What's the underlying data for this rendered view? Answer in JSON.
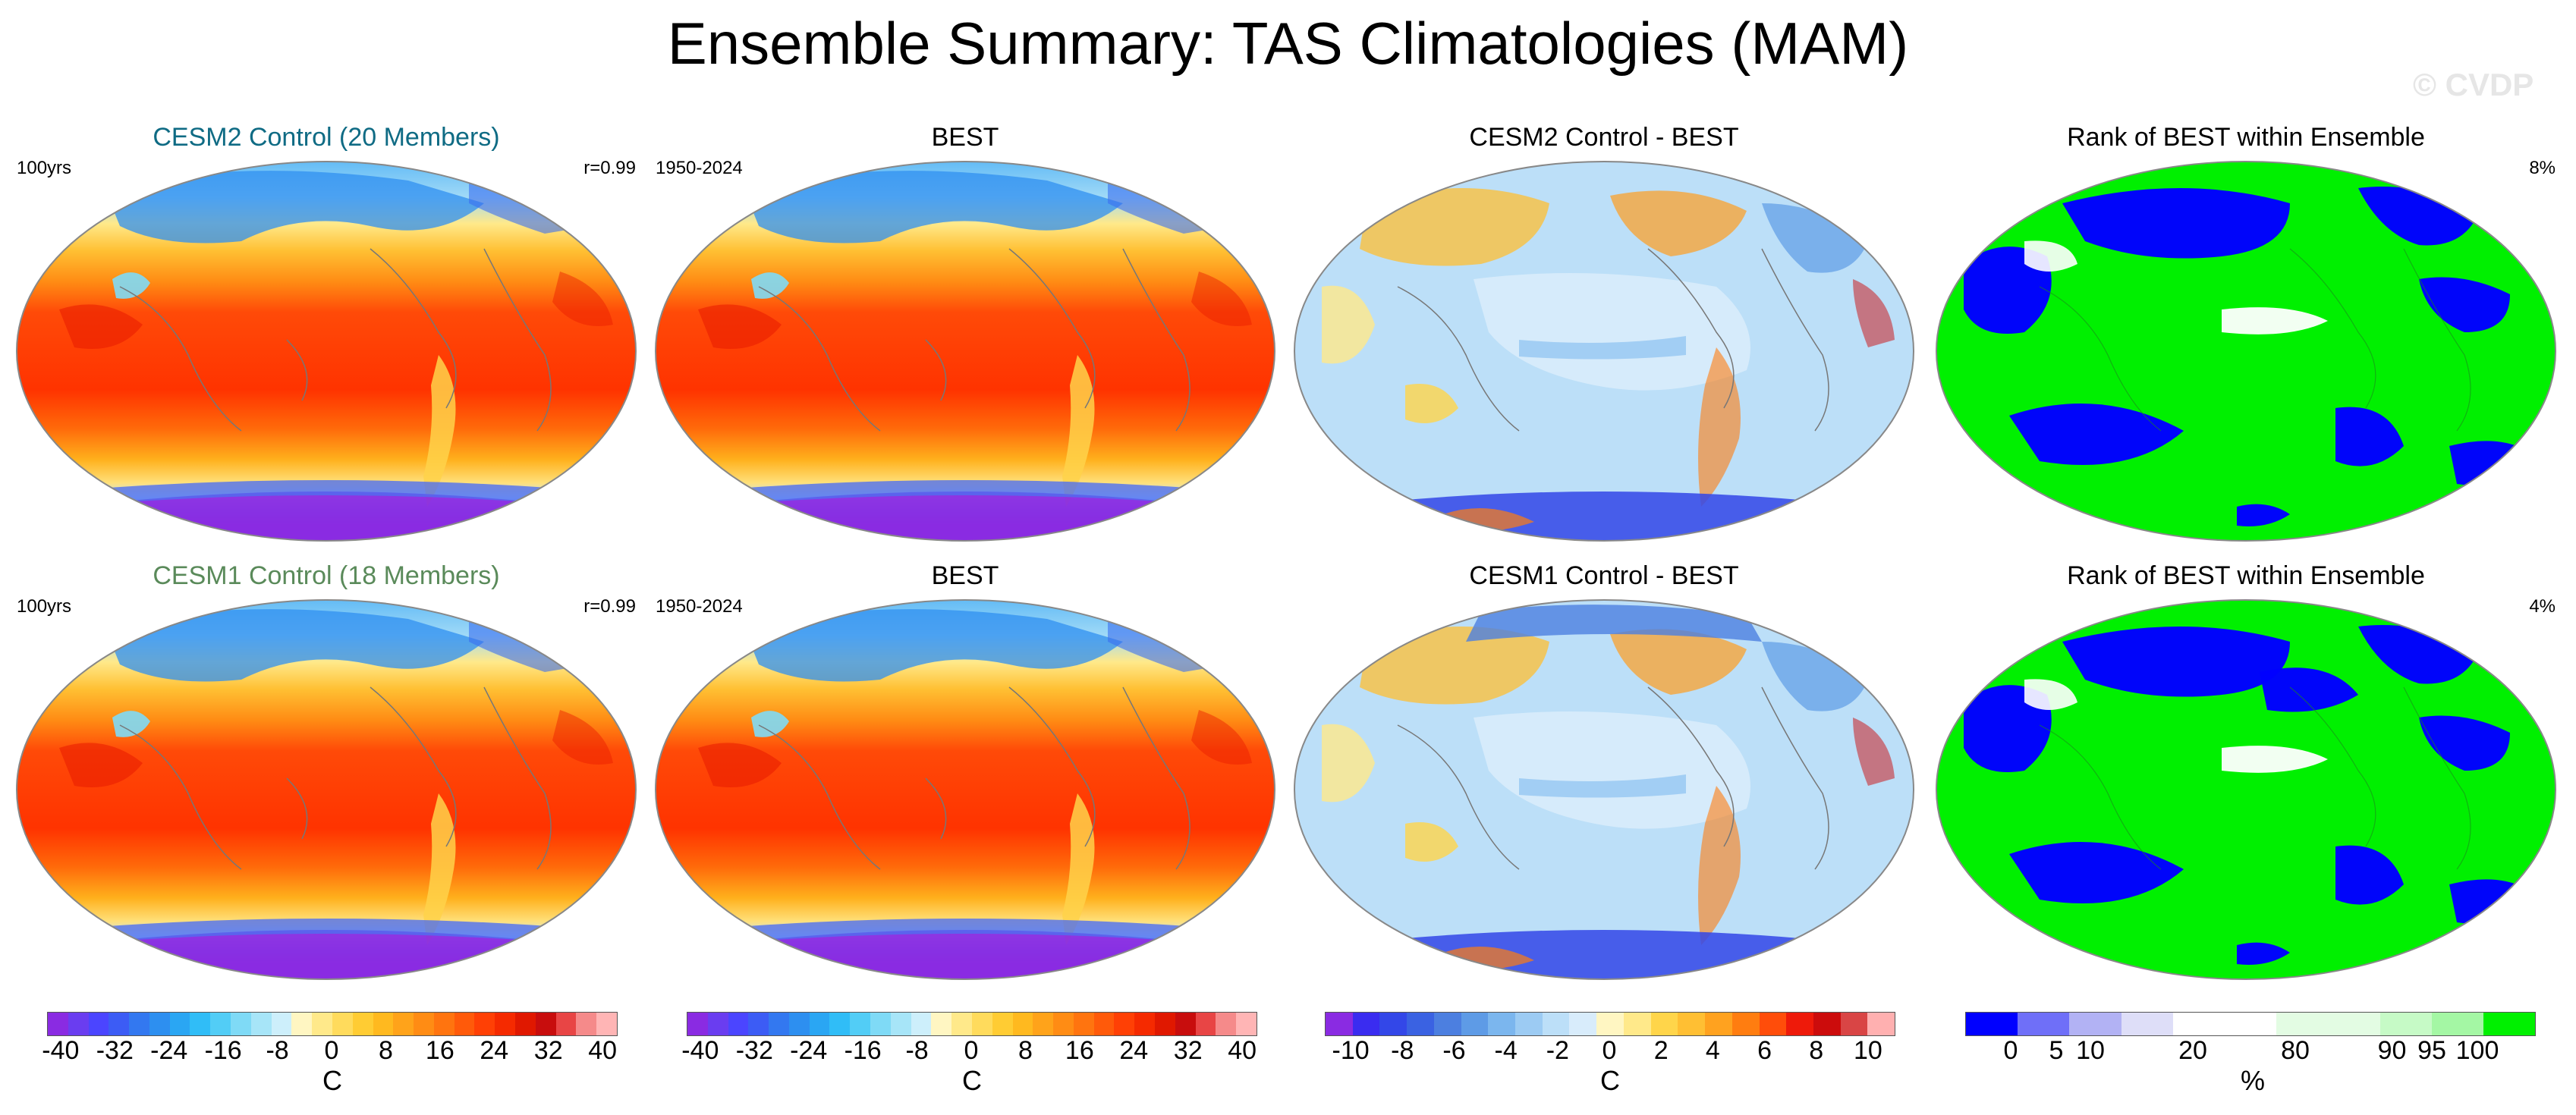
{
  "main_title": "Ensemble Summary: TAS Climatologies (MAM)",
  "watermark": "© CVDP",
  "chart_data": [
    {
      "type": "heatmap",
      "title": "CESM2 Control (20 Members)",
      "corner_left": "100yrs",
      "corner_right": "r=0.99",
      "scale": "temp"
    },
    {
      "type": "heatmap",
      "title": "BEST",
      "corner_left": "1950-2024",
      "corner_right": "",
      "scale": "temp"
    },
    {
      "type": "heatmap",
      "title": "CESM2 Control - BEST",
      "corner_left": "",
      "corner_right": "",
      "scale": "diff"
    },
    {
      "type": "heatmap",
      "title": "Rank of BEST within Ensemble",
      "corner_left": "",
      "corner_right": "8%",
      "scale": "rank"
    },
    {
      "type": "heatmap",
      "title": "CESM1 Control (18 Members)",
      "corner_left": "100yrs",
      "corner_right": "r=0.99",
      "scale": "temp"
    },
    {
      "type": "heatmap",
      "title": "BEST",
      "corner_left": "1950-2024",
      "corner_right": "",
      "scale": "temp"
    },
    {
      "type": "heatmap",
      "title": "CESM1 Control - BEST",
      "corner_left": "",
      "corner_right": "",
      "scale": "diff"
    },
    {
      "type": "heatmap",
      "title": "Rank of BEST within Ensemble",
      "corner_left": "",
      "corner_right": "4%",
      "scale": "rank"
    }
  ],
  "colorbars": [
    {
      "unit": "C",
      "min": -42,
      "max": 42,
      "colors": [
        "#8a2be2",
        "#6a3df0",
        "#4b45ff",
        "#3c5cf5",
        "#3378f0",
        "#2d8ff0",
        "#2aa6f3",
        "#30bdf7",
        "#52cdf6",
        "#7fdaf6",
        "#a7e5f8",
        "#cdeffb",
        "#fff6c2",
        "#ffe98a",
        "#ffdb5c",
        "#ffcc33",
        "#ffb91f",
        "#ffa31a",
        "#ff8c14",
        "#ff740f",
        "#ff5a0a",
        "#ff4005",
        "#f52a00",
        "#e01800",
        "#c80d0d",
        "#e84545",
        "#f58a8a",
        "#ffb5b5"
      ],
      "ticks": [
        {
          "v": -40,
          "label": "-40"
        },
        {
          "v": -32,
          "label": "-32"
        },
        {
          "v": -24,
          "label": "-24"
        },
        {
          "v": -16,
          "label": "-16"
        },
        {
          "v": -8,
          "label": "-8"
        },
        {
          "v": 0,
          "label": "0"
        },
        {
          "v": 8,
          "label": "8"
        },
        {
          "v": 16,
          "label": "16"
        },
        {
          "v": 24,
          "label": "24"
        },
        {
          "v": 32,
          "label": "32"
        },
        {
          "v": 40,
          "label": "40"
        }
      ]
    },
    {
      "unit": "C",
      "min": -42,
      "max": 42,
      "colors": [
        "#8a2be2",
        "#6a3df0",
        "#4b45ff",
        "#3c5cf5",
        "#3378f0",
        "#2d8ff0",
        "#2aa6f3",
        "#30bdf7",
        "#52cdf6",
        "#7fdaf6",
        "#a7e5f8",
        "#cdeffb",
        "#fff6c2",
        "#ffe98a",
        "#ffdb5c",
        "#ffcc33",
        "#ffb91f",
        "#ffa31a",
        "#ff8c14",
        "#ff740f",
        "#ff5a0a",
        "#ff4005",
        "#f52a00",
        "#e01800",
        "#c80d0d",
        "#e84545",
        "#f58a8a",
        "#ffb5b5"
      ],
      "ticks": [
        {
          "v": -40,
          "label": "-40"
        },
        {
          "v": -32,
          "label": "-32"
        },
        {
          "v": -24,
          "label": "-24"
        },
        {
          "v": -16,
          "label": "-16"
        },
        {
          "v": -8,
          "label": "-8"
        },
        {
          "v": 0,
          "label": "0"
        },
        {
          "v": 8,
          "label": "8"
        },
        {
          "v": 16,
          "label": "16"
        },
        {
          "v": 24,
          "label": "24"
        },
        {
          "v": 32,
          "label": "32"
        },
        {
          "v": 40,
          "label": "40"
        }
      ]
    },
    {
      "unit": "C",
      "min": -11,
      "max": 11,
      "colors": [
        "#8a2be2",
        "#3a2cf0",
        "#3347e8",
        "#3a62e2",
        "#4c7fe0",
        "#5e9be6",
        "#7bb6ee",
        "#9ccbf3",
        "#bcdff8",
        "#d8ecfb",
        "#fff6c2",
        "#ffe98a",
        "#ffd54a",
        "#ffbf33",
        "#ffa21f",
        "#ff7d10",
        "#ff4d0a",
        "#ee1a0a",
        "#cc0c0c",
        "#d94545",
        "#ffb0b0"
      ],
      "ticks": [
        {
          "v": -10,
          "label": "-10"
        },
        {
          "v": -8,
          "label": "-8"
        },
        {
          "v": -6,
          "label": "-6"
        },
        {
          "v": -4,
          "label": "-4"
        },
        {
          "v": -2,
          "label": "-2"
        },
        {
          "v": 0,
          "label": "0"
        },
        {
          "v": 2,
          "label": "2"
        },
        {
          "v": 4,
          "label": "4"
        },
        {
          "v": 6,
          "label": "6"
        },
        {
          "v": 8,
          "label": "8"
        },
        {
          "v": 10,
          "label": "10"
        }
      ]
    },
    {
      "unit": "%",
      "min": 0,
      "max": 100,
      "colors": [
        "#0000ff",
        "#6f6ff8",
        "#b2b2f4",
        "#dedef8",
        "#ffffff",
        "#ffffff",
        "#e3fce3",
        "#e3fce3",
        "#c6fac6",
        "#a4f7a4",
        "#00f000"
      ],
      "ticks": [
        {
          "v": 0,
          "label": "0"
        },
        {
          "v": 5,
          "label": "5"
        },
        {
          "v": 10,
          "label": "10"
        },
        {
          "v": 20,
          "label": "20"
        },
        {
          "v": 80,
          "label": "80"
        },
        {
          "v": 90,
          "label": "90"
        },
        {
          "v": 95,
          "label": "95"
        },
        {
          "v": 100,
          "label": "100"
        }
      ],
      "tick_pos": [
        0.08,
        0.16,
        0.22,
        0.4,
        0.58,
        0.75,
        0.82,
        0.9
      ]
    }
  ]
}
